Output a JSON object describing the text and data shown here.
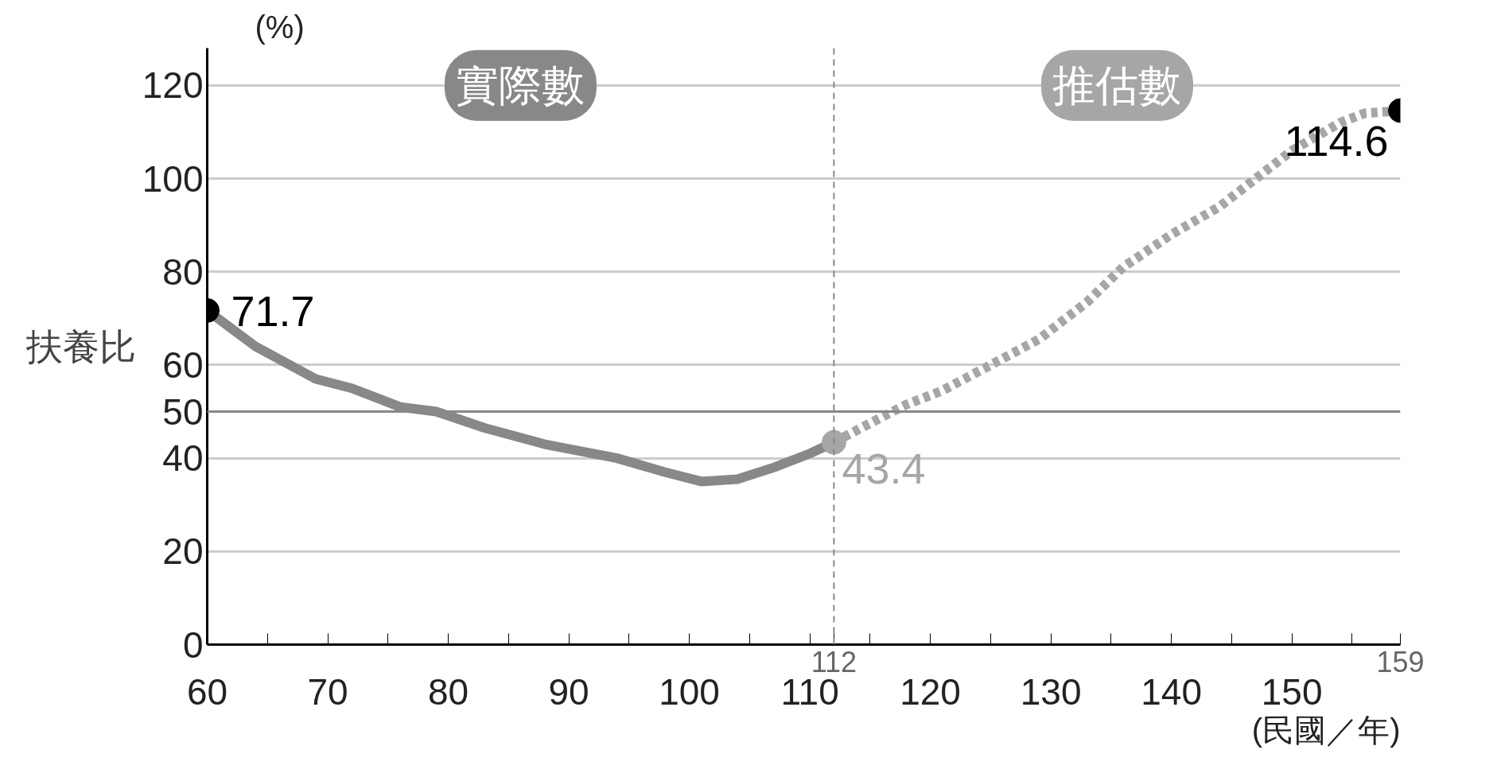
{
  "chart_data": {
    "type": "line",
    "ylabel": "扶養比",
    "xlabel": "(民國／年)",
    "annotations": [
      "(%)",
      "159"
    ],
    "xlim": [
      60,
      159
    ],
    "ylim": [
      0,
      128
    ],
    "xticks": [
      60,
      {
        "value": 65,
        "label": null
      },
      70,
      {
        "value": 75,
        "label": null
      },
      80,
      {
        "value": 85,
        "label": null
      },
      90,
      {
        "value": 95,
        "label": null
      },
      100,
      {
        "value": 105,
        "label": null
      },
      110,
      {
        "value": 115,
        "label": null
      },
      120,
      {
        "value": 125,
        "label": null
      },
      130,
      {
        "value": 135,
        "label": null
      },
      140,
      {
        "value": 145,
        "label": null
      },
      150,
      {
        "value": 155,
        "label": null
      }
    ],
    "yticks": [
      0,
      20,
      40,
      60,
      80,
      100,
      120
    ],
    "grid": "y",
    "ref_lines": [
      {
        "axis": "x",
        "value": 112,
        "label": "112",
        "color": "#888888",
        "line_style": "dashed"
      },
      {
        "axis": "y",
        "value": 50,
        "label": "50",
        "color": "#888888",
        "line_style": "solid"
      }
    ],
    "series": [
      {
        "name": "實際數",
        "color": "#888888",
        "line_style": "solid",
        "x": [
          60,
          64,
          69,
          72,
          74,
          76,
          79,
          83,
          88,
          91,
          94,
          98,
          101,
          104,
          107,
          110,
          112
        ],
        "values": [
          71.7,
          64,
          57,
          55,
          53,
          51,
          50,
          46.5,
          43,
          41.5,
          40,
          37,
          35,
          35.5,
          38,
          41,
          43.4
        ],
        "value_labels": [
          "71.7",
          null,
          null,
          null,
          null,
          null,
          null,
          null,
          null,
          null,
          null,
          null,
          null,
          null,
          null,
          null,
          null
        ]
      },
      {
        "name": "推估數",
        "color": "#a6a6a6",
        "line_style": "dashed",
        "x": [
          112,
          115,
          118,
          121,
          125,
          129,
          133,
          136,
          140,
          144,
          147,
          150,
          154,
          156,
          159
        ],
        "values": [
          43.4,
          47.5,
          51.5,
          54.5,
          60,
          65.5,
          73.5,
          81,
          88,
          94,
          100,
          106,
          112,
          114,
          114.6
        ],
        "value_labels": [
          "43.4",
          null,
          null,
          null,
          null,
          null,
          null,
          null,
          null,
          null,
          null,
          null,
          null,
          null,
          "114.6"
        ]
      }
    ]
  }
}
